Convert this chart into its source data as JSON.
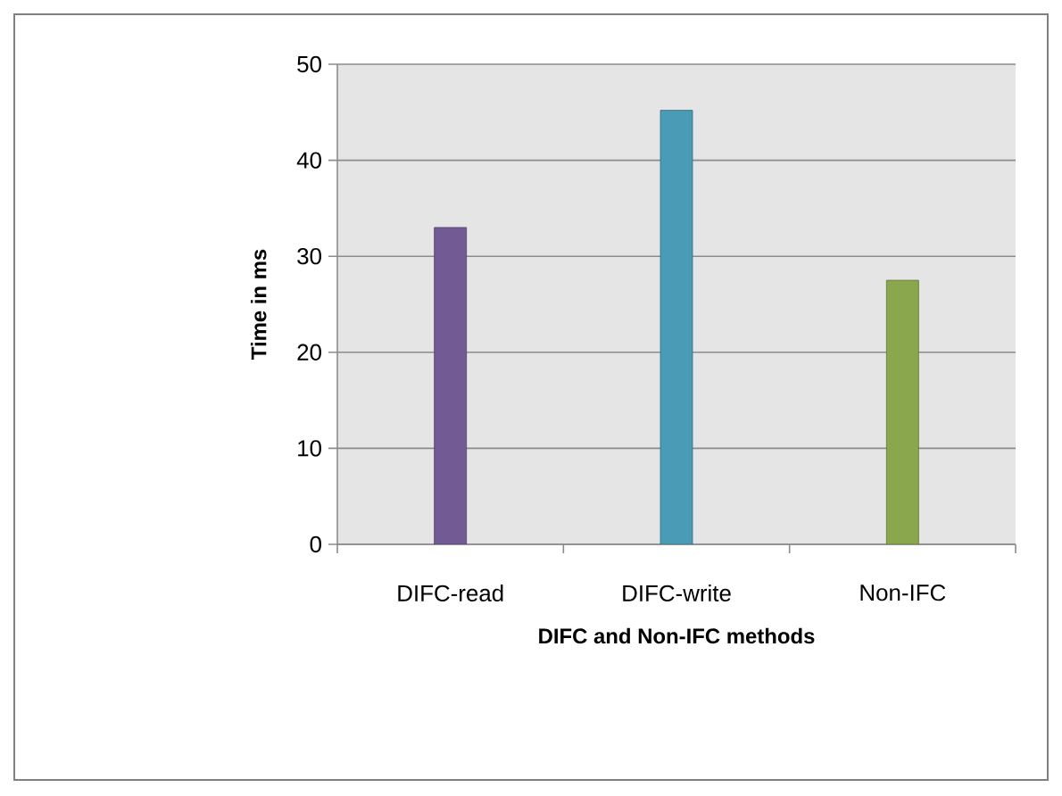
{
  "chart_data": {
    "type": "bar",
    "xlabel": "DIFC and Non-IFC methods",
    "ylabel": "Time in ms",
    "categories": [
      "DIFC-read",
      "DIFC-write",
      "Non-IFC"
    ],
    "values": [
      33,
      45.2,
      27.5
    ],
    "colors": [
      "#725a94",
      "#4a9bb5",
      "#8aa74e"
    ],
    "ylim": [
      0,
      50
    ],
    "yticks": [
      0,
      10,
      20,
      30,
      40,
      50
    ],
    "grid": "y"
  }
}
